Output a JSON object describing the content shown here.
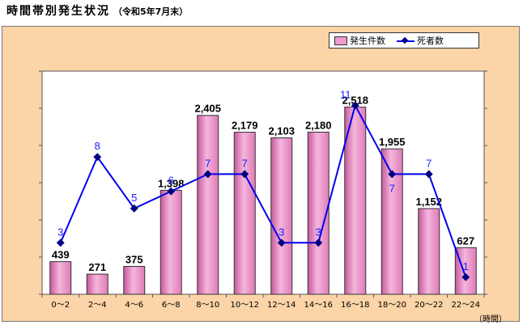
{
  "title": "時間帯別発生状況",
  "subtitle": "（令和5年7月末）",
  "chart_data": {
    "type": "bar",
    "categories": [
      "0～2",
      "2～4",
      "4～6",
      "6～8",
      "8～10",
      "10～12",
      "12～14",
      "14～16",
      "16～18",
      "18～20",
      "20～22",
      "22～24"
    ],
    "series": [
      {
        "name": "発生件数",
        "type": "bar",
        "values": [
          439,
          271,
          375,
          1398,
          2405,
          2179,
          2103,
          2180,
          2518,
          1955,
          1152,
          627
        ],
        "labels": [
          "439",
          "271",
          "375",
          "1,398",
          "2,405",
          "2,179",
          "2,103",
          "2,180",
          "2,518",
          "1,955",
          "1,152",
          "627"
        ],
        "color": "#ef9ad0"
      },
      {
        "name": "死者数",
        "type": "line",
        "values": [
          3,
          8,
          5,
          6,
          7,
          7,
          3,
          3,
          11,
          7,
          7,
          1
        ],
        "color": "#0000ee"
      }
    ],
    "xlabel": "（時間）",
    "ylim_bar": [
      0,
      3000
    ],
    "ylim_line": [
      0,
      13
    ],
    "legend": "top-right",
    "grid": false
  }
}
